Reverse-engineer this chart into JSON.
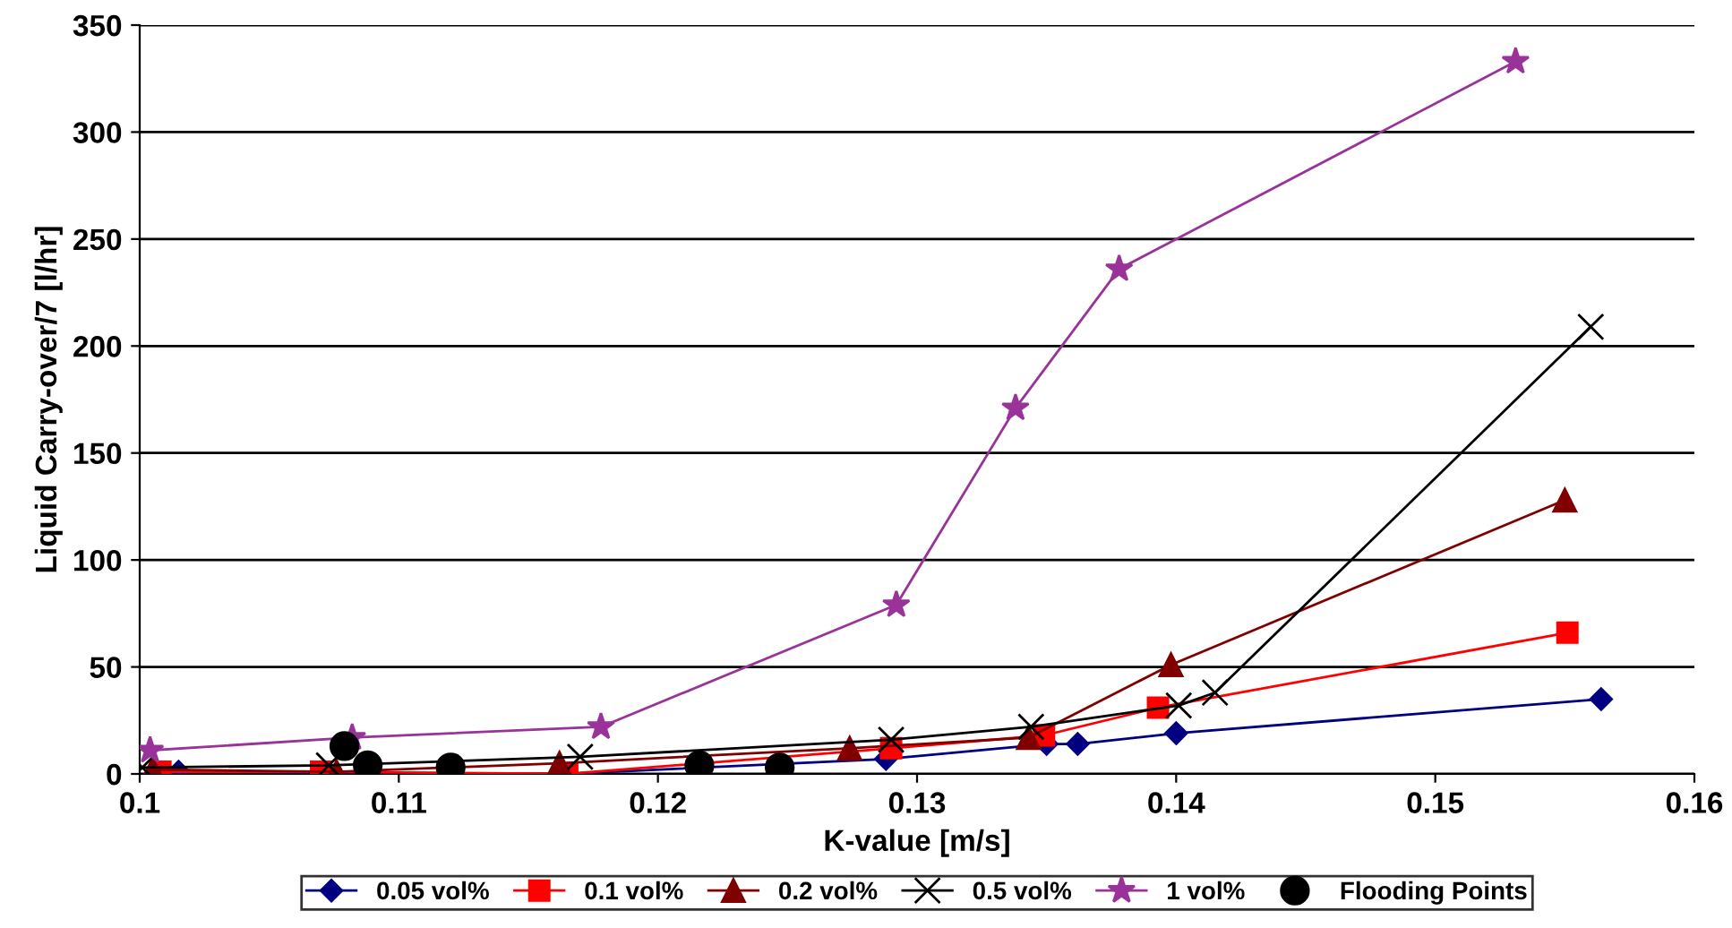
{
  "chart_data": {
    "type": "line",
    "xlabel": "K-value [m/s]",
    "ylabel": "Liquid Carry-over/7 [l/hr]",
    "xlim": [
      0.1,
      0.16
    ],
    "xticks": [
      {
        "value": 0.1,
        "label": "0.1"
      },
      {
        "value": 0.11,
        "label": "0.11"
      },
      {
        "value": 0.12,
        "label": "0.12"
      },
      {
        "value": 0.13,
        "label": "0.13"
      },
      {
        "value": 0.14,
        "label": "0.14"
      },
      {
        "value": 0.15,
        "label": "0.15"
      },
      {
        "value": 0.16,
        "label": "0.16"
      }
    ],
    "ylim": [
      0,
      350
    ],
    "yticks": [
      0,
      50,
      100,
      150,
      200,
      250,
      300,
      350
    ],
    "grid": "y",
    "legend": "bottom",
    "series": [
      {
        "name": "0.05 vol%",
        "color": "#000080",
        "marker": "diamond",
        "x": [
          0.1015,
          0.1165,
          0.1288,
          0.135,
          0.1362,
          0.14,
          0.1564
        ],
        "values": [
          1,
          0,
          7,
          14,
          14,
          19,
          35
        ]
      },
      {
        "name": "0.1 vol%",
        "color": "#ff0000",
        "marker": "square",
        "x": [
          0.1008,
          0.107,
          0.1165,
          0.129,
          0.1349,
          0.1393,
          0.1551
        ],
        "values": [
          1,
          1,
          0,
          12,
          18,
          31,
          66
        ]
      },
      {
        "name": "0.2 vol%",
        "color": "#800000",
        "marker": "triangle",
        "x": [
          0.1005,
          0.1076,
          0.1162,
          0.1274,
          0.1343,
          0.1398,
          0.155
        ],
        "values": [
          2,
          1,
          5,
          12,
          17,
          51,
          128
        ]
      },
      {
        "name": "0.5 vol%",
        "color": "#000000",
        "marker": "cross",
        "x": [
          0.1001,
          0.1073,
          0.117,
          0.129,
          0.1344,
          0.1401,
          0.1415,
          0.156
        ],
        "values": [
          3,
          4,
          8,
          16,
          22,
          32,
          38,
          209
        ]
      },
      {
        "name": "1 vol%",
        "color": "#993399",
        "marker": "star",
        "x": [
          0.1004,
          0.1082,
          0.1178,
          0.1292,
          0.1338,
          0.1378,
          0.1531
        ],
        "values": [
          11,
          17,
          22,
          79,
          171,
          236,
          333
        ]
      },
      {
        "name": "Flooding Points",
        "type": "scatter",
        "color": "#000000",
        "marker": "circle",
        "x": [
          0.1079,
          0.1088,
          0.112,
          0.1216,
          0.1247
        ],
        "values": [
          13,
          4,
          3,
          4,
          3
        ]
      }
    ]
  }
}
